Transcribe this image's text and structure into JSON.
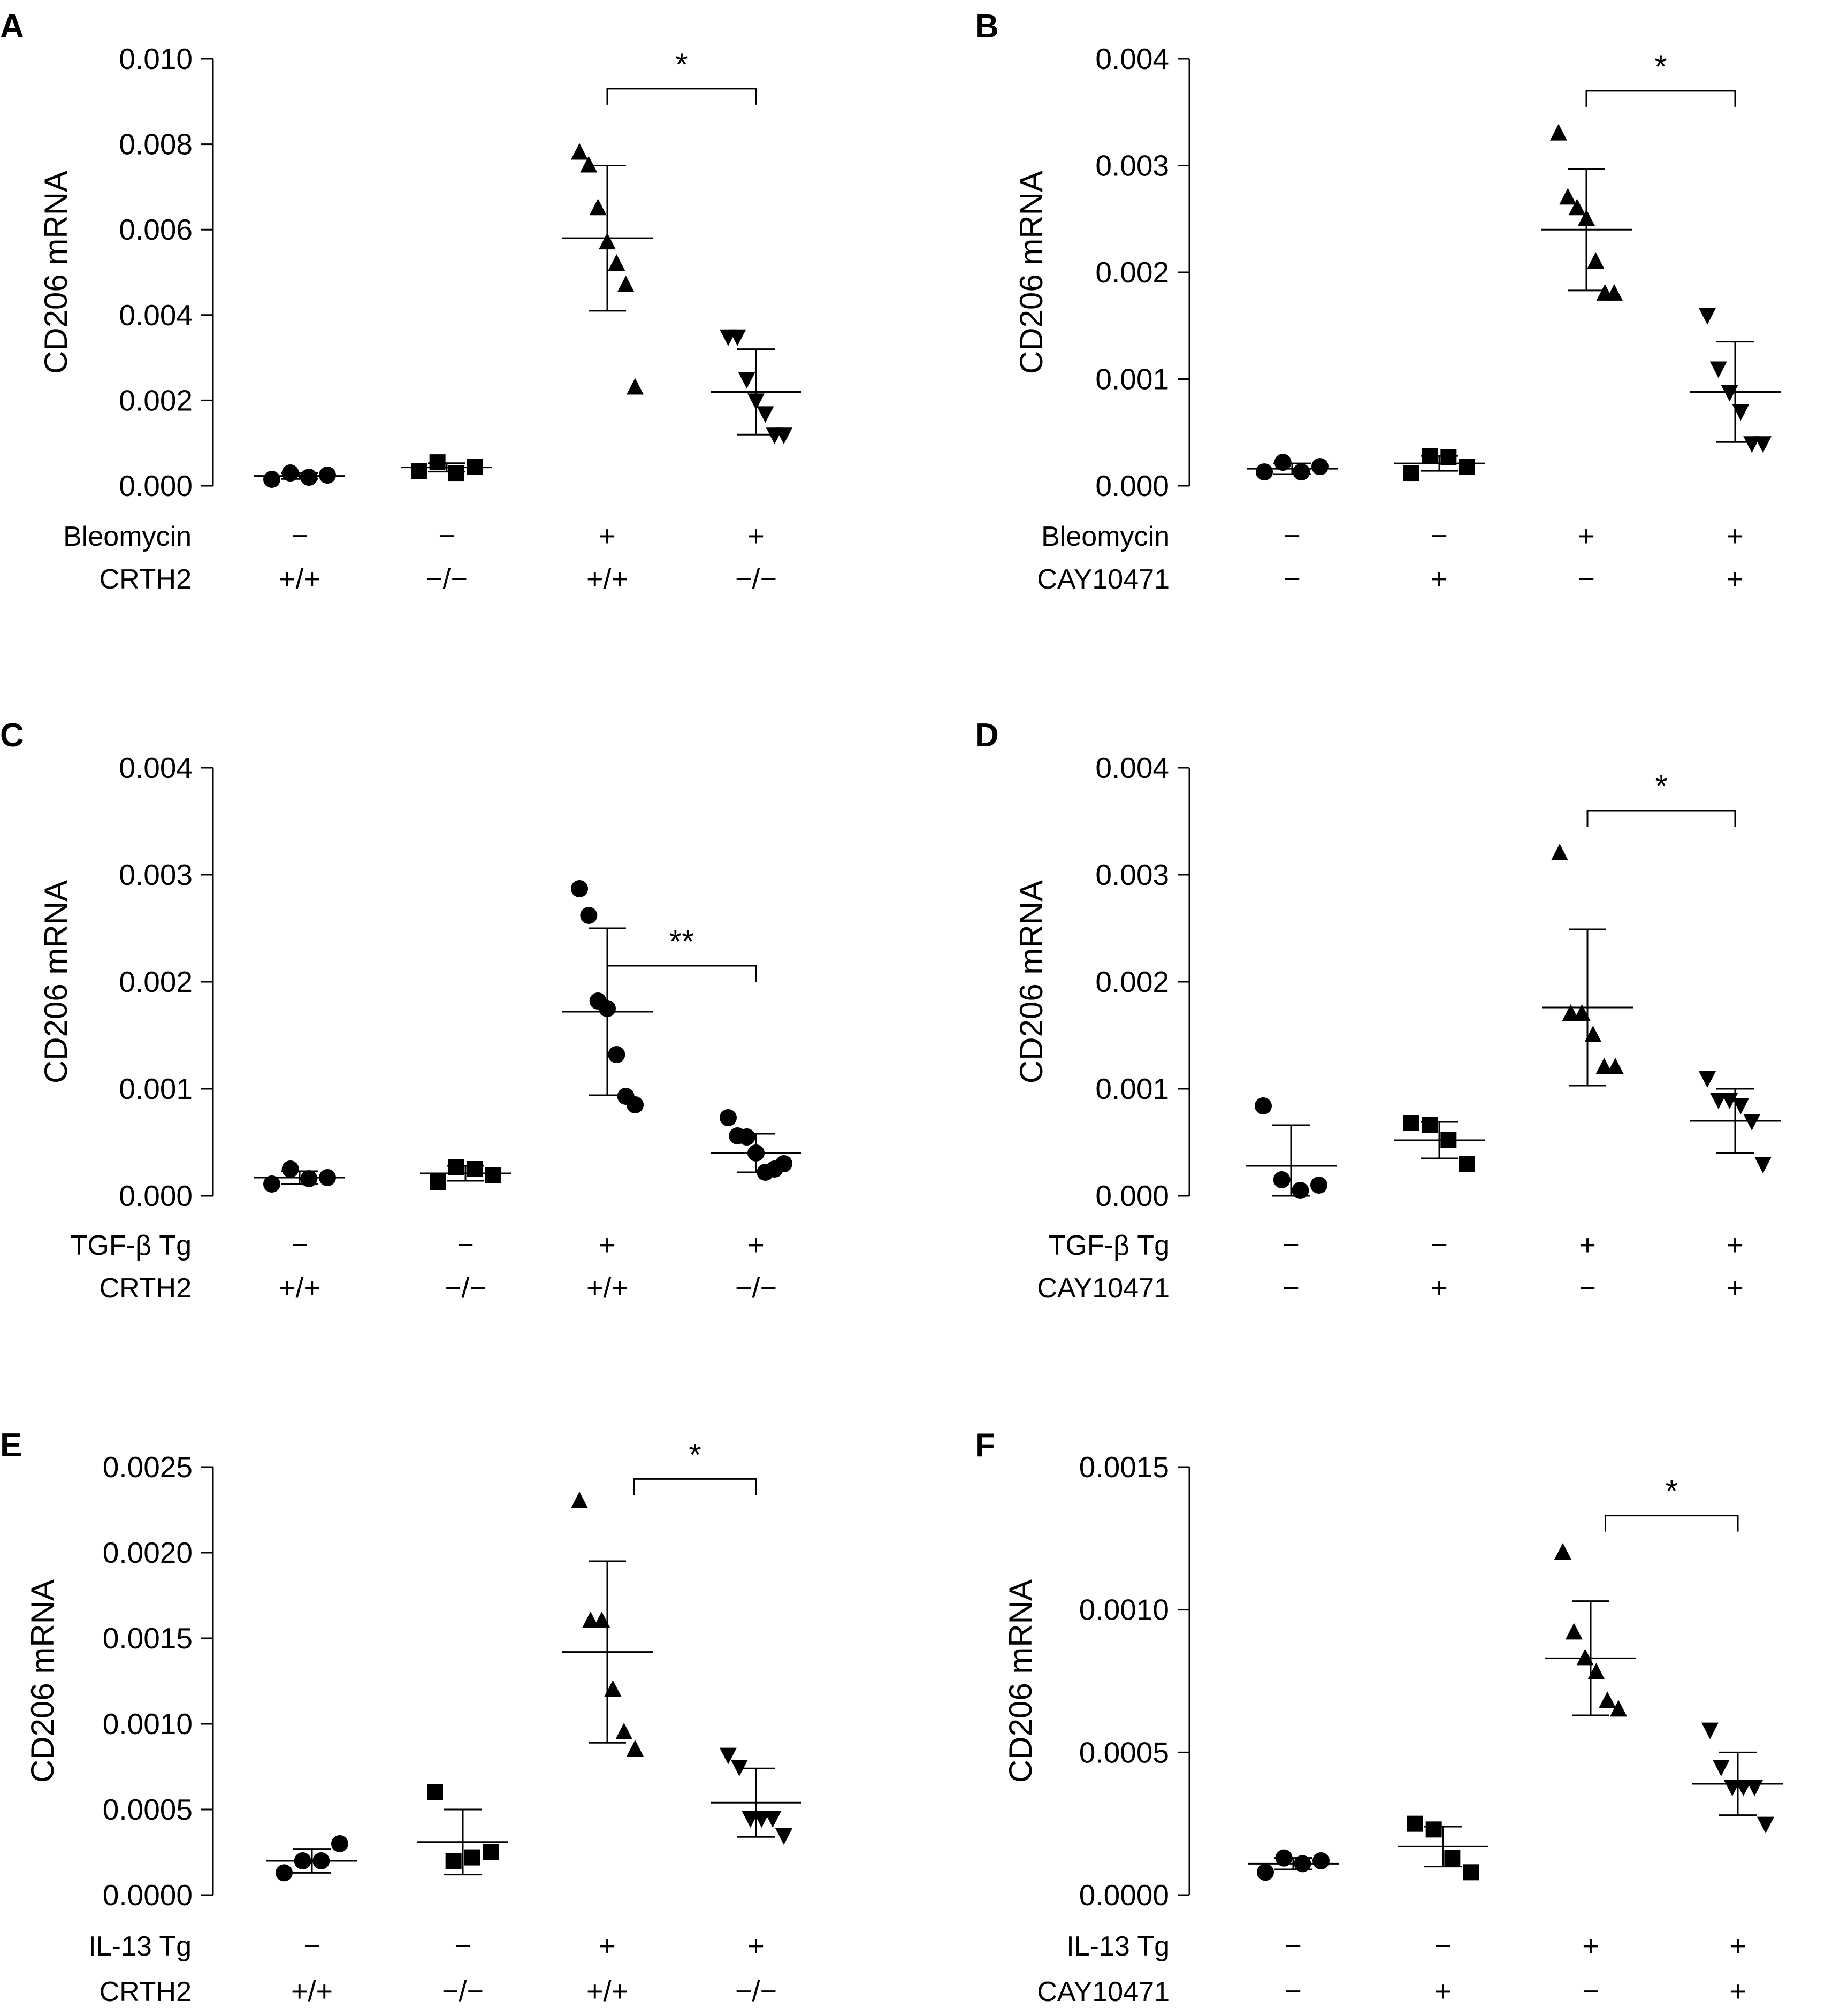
{
  "figure": {
    "colors": {
      "ink": "#000000",
      "background": "#ffffff"
    },
    "panels": [
      {
        "letter": "A",
        "chart_data": {
          "type": "scatter",
          "title": "",
          "xlabel": "",
          "ylabel": "CD206 mRNA",
          "ylim": [
            0,
            0.01
          ],
          "yticks": [
            "0.000",
            "0.002",
            "0.004",
            "0.006",
            "0.008",
            "0.010"
          ],
          "conditions": [
            {
              "label": "Bleomycin",
              "values": [
                "−",
                "−",
                "+",
                "+"
              ]
            },
            {
              "label": "CRTH2",
              "values": [
                "+/+",
                "−/−",
                "+/+",
                "−/−"
              ]
            }
          ],
          "groups": [
            {
              "marker": "circle",
              "points": [
                0.00015,
                0.0003,
                0.0002,
                0.00025
              ],
              "mean": 0.00023,
              "sd": 7e-05
            },
            {
              "marker": "square",
              "points": [
                0.00035,
                0.00055,
                0.0003,
                0.00045
              ],
              "mean": 0.00043,
              "sd": 0.0001
            },
            {
              "marker": "triangle-up",
              "points": [
                0.0078,
                0.0075,
                0.0065,
                0.0057,
                0.0052,
                0.0047,
                0.0023
              ],
              "mean": 0.0058,
              "sd": 0.0017
            },
            {
              "marker": "triangle-down",
              "points": [
                0.0035,
                0.0035,
                0.0025,
                0.002,
                0.0017,
                0.0012,
                0.0012
              ],
              "mean": 0.0022,
              "sd": 0.001
            }
          ],
          "significance": {
            "from_group": 2,
            "to_group": 3,
            "y": 0.0093,
            "label": "*"
          }
        }
      },
      {
        "letter": "B",
        "chart_data": {
          "type": "scatter",
          "title": "",
          "xlabel": "",
          "ylabel": "CD206 mRNA",
          "ylim": [
            0,
            0.004
          ],
          "yticks": [
            "0.000",
            "0.001",
            "0.002",
            "0.003",
            "0.004"
          ],
          "conditions": [
            {
              "label": "Bleomycin",
              "values": [
                "−",
                "−",
                "+",
                "+"
              ]
            },
            {
              "label": "CAY10471",
              "values": [
                "−",
                "+",
                "−",
                "+"
              ]
            }
          ],
          "groups": [
            {
              "marker": "circle",
              "points": [
                0.00013,
                0.00022,
                0.00013,
                0.00018
              ],
              "mean": 0.00016,
              "sd": 5e-05
            },
            {
              "marker": "square",
              "points": [
                0.00012,
                0.00028,
                0.00027,
                0.00018
              ],
              "mean": 0.00021,
              "sd": 7e-05
            },
            {
              "marker": "triangle-up",
              "points": [
                0.0033,
                0.0027,
                0.0026,
                0.0025,
                0.0021,
                0.0018,
                0.0018
              ],
              "mean": 0.0024,
              "sd": 0.00057
            },
            {
              "marker": "triangle-down",
              "points": [
                0.0016,
                0.0011,
                0.00088,
                0.0007,
                0.0004,
                0.0004
              ],
              "mean": 0.00088,
              "sd": 0.00047
            }
          ],
          "significance": {
            "from_group": 2,
            "to_group": 3,
            "y": 0.0037,
            "label": "*"
          }
        }
      },
      {
        "letter": "C",
        "chart_data": {
          "type": "scatter",
          "title": "",
          "xlabel": "",
          "ylabel": "CD206 mRNA",
          "ylim": [
            0,
            0.004
          ],
          "yticks": [
            "0.000",
            "0.001",
            "0.002",
            "0.003",
            "0.004"
          ],
          "conditions": [
            {
              "label": "TGF-β Tg",
              "values": [
                "−",
                "−",
                "+",
                "+"
              ]
            },
            {
              "label": "CRTH2",
              "values": [
                "+/+",
                "−/−",
                "+/+",
                "−/−"
              ]
            }
          ],
          "groups": [
            {
              "marker": "circle",
              "points": [
                0.00011,
                0.00025,
                0.00016,
                0.00017
              ],
              "mean": 0.00017,
              "sd": 6e-05
            },
            {
              "marker": "square",
              "points": [
                0.00013,
                0.00027,
                0.00025,
                0.00019
              ],
              "mean": 0.00021,
              "sd": 7e-05
            },
            {
              "marker": "circle",
              "points": [
                0.00287,
                0.00262,
                0.00182,
                0.00175,
                0.00132,
                0.00093,
                0.00085
              ],
              "mean": 0.00172,
              "sd": 0.00078
            },
            {
              "marker": "circle",
              "points": [
                0.00073,
                0.00056,
                0.00055,
                0.0004,
                0.00022,
                0.00025,
                0.0003
              ],
              "mean": 0.0004,
              "sd": 0.00018
            }
          ],
          "significance": {
            "from_group": 2,
            "to_group": 3,
            "y": 0.00215,
            "label": "**"
          }
        }
      },
      {
        "letter": "D",
        "chart_data": {
          "type": "scatter",
          "title": "",
          "xlabel": "",
          "ylabel": "CD206 mRNA",
          "ylim": [
            0,
            0.004
          ],
          "yticks": [
            "0.000",
            "0.001",
            "0.002",
            "0.003",
            "0.004"
          ],
          "conditions": [
            {
              "label": "TGF-β Tg",
              "values": [
                "−",
                "−",
                "+",
                "+"
              ]
            },
            {
              "label": "CAY10471",
              "values": [
                "−",
                "+",
                "−",
                "+"
              ]
            }
          ],
          "groups": [
            {
              "marker": "circle",
              "points": [
                0.00084,
                0.00015,
                5e-05,
                0.0001
              ],
              "mean": 0.00028,
              "sd": 0.00038
            },
            {
              "marker": "square",
              "points": [
                0.00068,
                0.00066,
                0.00052,
                0.0003
              ],
              "mean": 0.00052,
              "sd": 0.00017
            },
            {
              "marker": "triangle-up",
              "points": [
                0.0032,
                0.0017,
                0.0017,
                0.0015,
                0.0012,
                0.0012
              ],
              "mean": 0.00176,
              "sd": 0.00073
            },
            {
              "marker": "triangle-down",
              "points": [
                0.0011,
                0.0009,
                0.0009,
                0.00085,
                0.0007,
                0.0003
              ],
              "mean": 0.0007,
              "sd": 0.0003
            }
          ],
          "significance": {
            "from_group": 2,
            "to_group": 3,
            "y": 0.0036,
            "label": "*"
          }
        }
      },
      {
        "letter": "E",
        "chart_data": {
          "type": "scatter",
          "title": "",
          "xlabel": "",
          "ylabel": "CD206 mRNA",
          "ylim": [
            0,
            0.0025
          ],
          "yticks": [
            "0.0000",
            "0.0005",
            "0.0010",
            "0.0015",
            "0.0020",
            "0.0025"
          ],
          "conditions": [
            {
              "label": "IL-13 Tg",
              "values": [
                "−",
                "−",
                "+",
                "+"
              ]
            },
            {
              "label": "CRTH2",
              "values": [
                "+/+",
                "−/−",
                "+/+",
                "−/−"
              ]
            }
          ],
          "groups": [
            {
              "marker": "circle",
              "points": [
                0.00013,
                0.0002,
                0.0002,
                0.0003
              ],
              "mean": 0.0002,
              "sd": 7e-05
            },
            {
              "marker": "square",
              "points": [
                0.0006,
                0.0002,
                0.00022,
                0.00025
              ],
              "mean": 0.00031,
              "sd": 0.00019
            },
            {
              "marker": "triangle-up",
              "points": [
                0.0023,
                0.0016,
                0.0016,
                0.0012,
                0.00095,
                0.00085
              ],
              "mean": 0.00142,
              "sd": 0.00053
            },
            {
              "marker": "triangle-down",
              "points": [
                0.00082,
                0.00075,
                0.00045,
                0.00045,
                0.00045,
                0.00035
              ],
              "mean": 0.00054,
              "sd": 0.0002
            }
          ],
          "significance": {
            "from_group": 2,
            "to_group": 3,
            "y": 0.00243,
            "label": "*",
            "start_offset": 0.18
          }
        }
      },
      {
        "letter": "F",
        "chart_data": {
          "type": "scatter",
          "title": "",
          "xlabel": "",
          "ylabel": "CD206 mRNA",
          "ylim": [
            0,
            0.0015
          ],
          "yticks": [
            "0.0000",
            "0.0005",
            "0.0010",
            "0.0015"
          ],
          "conditions": [
            {
              "label": "IL-13 Tg",
              "values": [
                "−",
                "−",
                "+",
                "+"
              ]
            },
            {
              "label": "CAY10471",
              "values": [
                "−",
                "+",
                "−",
                "+"
              ]
            }
          ],
          "groups": [
            {
              "marker": "circle",
              "points": [
                8e-05,
                0.00013,
                0.00011,
                0.00012
              ],
              "mean": 0.00011,
              "sd": 2e-05
            },
            {
              "marker": "square",
              "points": [
                0.00025,
                0.00023,
                0.00013,
                8e-05
              ],
              "mean": 0.00017,
              "sd": 7e-05
            },
            {
              "marker": "triangle-up",
              "points": [
                0.0012,
                0.00092,
                0.00083,
                0.00078,
                0.00068,
                0.00065
              ],
              "mean": 0.00083,
              "sd": 0.0002
            },
            {
              "marker": "triangle-down",
              "points": [
                0.00058,
                0.00045,
                0.00038,
                0.00038,
                0.00038,
                0.00025
              ],
              "mean": 0.00039,
              "sd": 0.00011
            }
          ],
          "significance": {
            "from_group": 2,
            "to_group": 3,
            "y": 0.00133,
            "label": "*",
            "start_offset": 0.1
          }
        }
      }
    ]
  }
}
